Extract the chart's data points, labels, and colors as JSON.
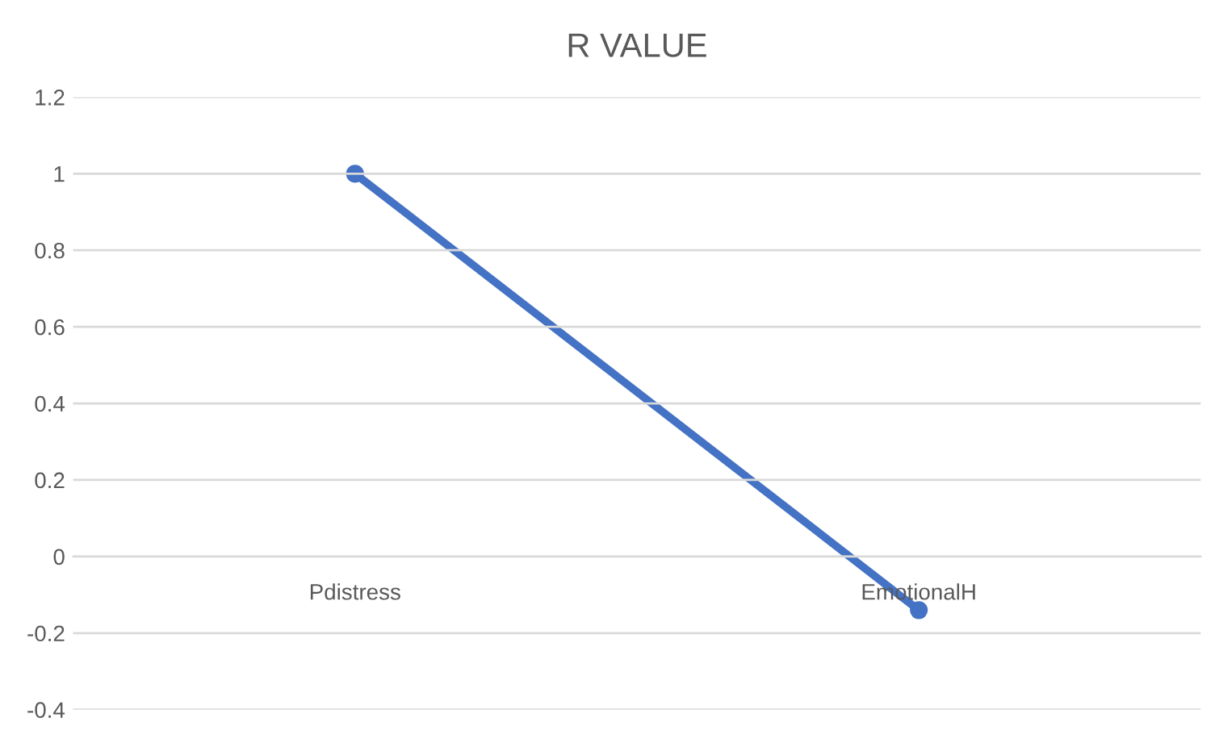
{
  "chart_data": {
    "type": "line",
    "title": "R VALUE",
    "categories": [
      "Pdistress",
      "EmotionalH"
    ],
    "series": [
      {
        "color": "#4472c4",
        "values": [
          1,
          -0.14
        ]
      }
    ],
    "ylim": [
      -0.4,
      1.2
    ],
    "yticks": [
      -0.4,
      -0.2,
      0,
      0.2,
      0.4,
      0.6,
      0.8,
      1,
      1.2
    ],
    "grid": "y",
    "marker": "circle",
    "line_style": "solid"
  }
}
